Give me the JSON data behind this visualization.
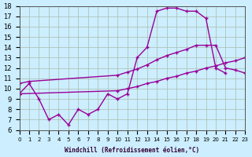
{
  "xlabel": "Windchill (Refroidissement éolien,°C)",
  "background_color": "#cceeff",
  "line_color": "#990099",
  "xlim": [
    0,
    23
  ],
  "ylim": [
    6,
    18
  ],
  "xticks": [
    0,
    1,
    2,
    3,
    4,
    5,
    6,
    7,
    8,
    9,
    10,
    11,
    12,
    13,
    14,
    15,
    16,
    17,
    18,
    19,
    20,
    21,
    22,
    23
  ],
  "yticks": [
    6,
    7,
    8,
    9,
    10,
    11,
    12,
    13,
    14,
    15,
    16,
    17,
    18
  ],
  "series": [
    {
      "x": [
        0,
        1,
        2,
        3,
        4,
        5,
        6,
        7,
        8,
        9,
        10,
        11,
        12,
        13,
        14,
        15,
        16,
        17,
        18,
        19,
        20,
        21
      ],
      "y": [
        9.5,
        10.5,
        9.0,
        7.0,
        7.5,
        6.5,
        8.0,
        7.5,
        8.0,
        9.5,
        9.0,
        9.5,
        13.0,
        14.0,
        17.5,
        17.8,
        17.8,
        17.5,
        17.5,
        16.8,
        12.0,
        11.5
      ]
    },
    {
      "x": [
        0,
        1,
        10,
        11,
        12,
        13,
        14,
        15,
        16,
        17,
        18,
        19,
        20,
        21,
        22,
        23
      ],
      "y": [
        10.5,
        10.7,
        11.3,
        11.6,
        11.9,
        12.3,
        12.8,
        13.2,
        13.5,
        13.8,
        14.2,
        14.2,
        14.2,
        12.0,
        11.8,
        11.5
      ]
    },
    {
      "x": [
        0,
        10,
        11,
        12,
        13,
        14,
        15,
        16,
        17,
        18,
        19,
        20,
        21,
        22,
        23
      ],
      "y": [
        9.5,
        9.8,
        10.0,
        10.2,
        10.5,
        10.7,
        11.0,
        11.2,
        11.5,
        11.7,
        12.0,
        12.2,
        12.5,
        12.7,
        13.0
      ]
    }
  ]
}
